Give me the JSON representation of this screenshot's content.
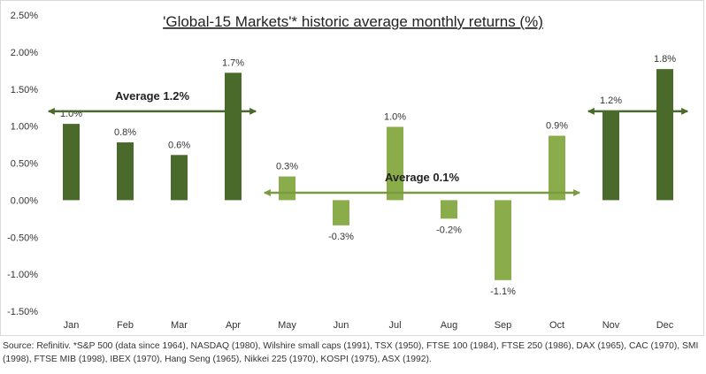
{
  "chart_data": {
    "type": "bar",
    "title": "'Global-15 Markets'* historic average monthly returns (%)",
    "categories": [
      "Jan",
      "Feb",
      "Mar",
      "Apr",
      "May",
      "Jun",
      "Jul",
      "Aug",
      "Sep",
      "Oct",
      "Nov",
      "Dec"
    ],
    "values": [
      1.03,
      0.78,
      0.61,
      1.72,
      0.32,
      -0.34,
      0.99,
      -0.25,
      -1.08,
      0.87,
      1.21,
      1.77
    ],
    "data_labels": [
      "1.0%",
      "0.8%",
      "0.6%",
      "1.7%",
      "0.3%",
      "-0.3%",
      "1.0%",
      "-0.2%",
      "-1.1%",
      "0.9%",
      "1.2%",
      "1.8%"
    ],
    "ylim": [
      -1.5,
      2.5
    ],
    "yticks": [
      "2.50%",
      "2.00%",
      "1.50%",
      "1.00%",
      "0.50%",
      "0.00%",
      "-0.50%",
      "-1.00%",
      "-1.50%"
    ],
    "ytick_values": [
      2.5,
      2.0,
      1.5,
      1.0,
      0.5,
      0.0,
      -0.5,
      -1.0,
      -1.5
    ],
    "xlabel": "",
    "ylabel": "",
    "grid": false,
    "colors": {
      "strong": "#4a6a2b",
      "weak": "#8aac4a"
    },
    "bar_colors": [
      "#4a6a2b",
      "#4a6a2b",
      "#4a6a2b",
      "#4a6a2b",
      "#8aac4a",
      "#8aac4a",
      "#8aac4a",
      "#8aac4a",
      "#8aac4a",
      "#8aac4a",
      "#4a6a2b",
      "#4a6a2b"
    ],
    "annotations": [
      {
        "text": "Average 1.2%",
        "value": 1.2,
        "from": "Jan",
        "to": "Apr",
        "color": "#4a6a2b"
      },
      {
        "text": "Average 0.1%",
        "value": 0.1,
        "from": "May",
        "to": "Oct",
        "color": "#7a9a40"
      },
      {
        "text": "",
        "value": 1.2,
        "from": "Nov",
        "to": "Dec",
        "color": "#4a6a2b"
      }
    ]
  },
  "source_note": "Source: Refinitiv. *S&P 500 (data since 1964), NASDAQ (1980), Wilshire small caps (1991), TSX (1950), FTSE 100 (1984), FTSE 250 (1986), DAX (1965), CAC (1970), SMI (1998), FTSE MIB (1998), IBEX (1970), Hang Seng (1965), Nikkei 225 (1970), KOSPI (1975), ASX (1992)."
}
